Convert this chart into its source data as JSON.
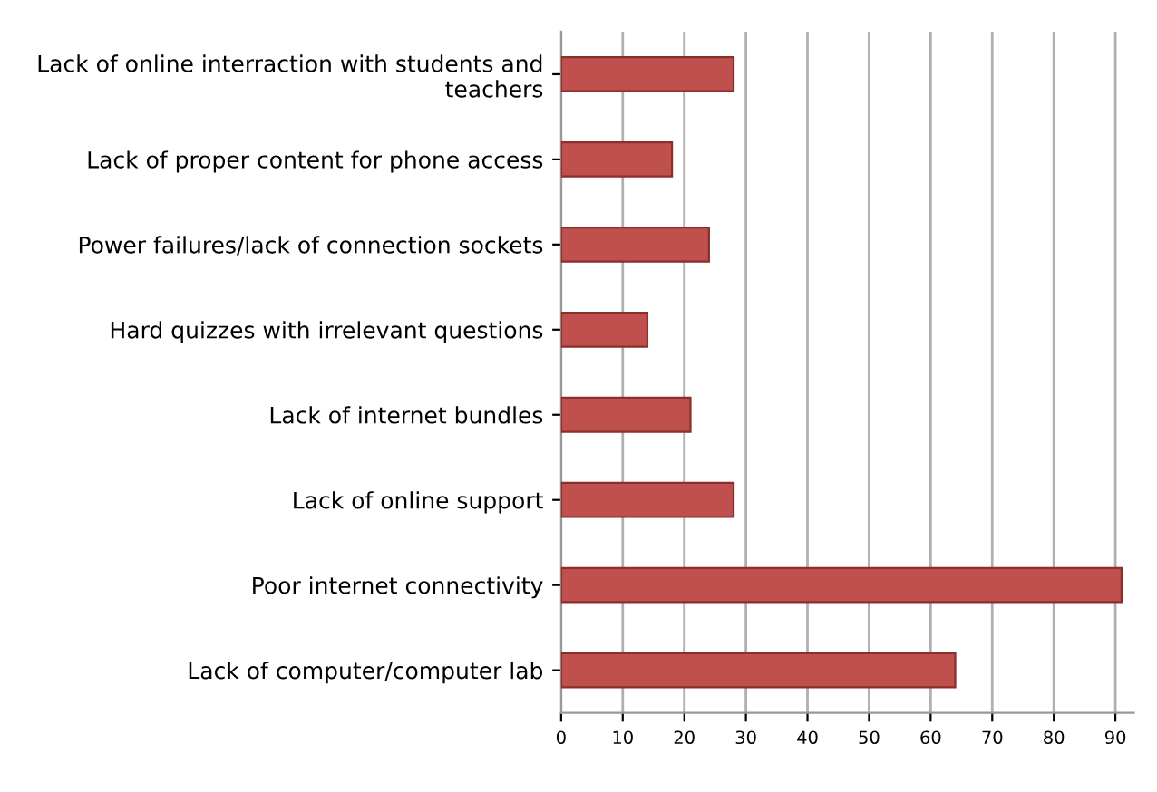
{
  "chart_data": {
    "type": "bar",
    "orientation": "horizontal",
    "categories": [
      "Lack of online interraction with students and teachers",
      "Lack of proper content for phone access",
      "Power failures/lack of connection sockets",
      "Hard quizzes with irrelevant questions",
      "Lack of internet bundles",
      "Lack of online support",
      "Poor internet connectivity",
      "Lack of computer/computer lab"
    ],
    "values": [
      28,
      18,
      24,
      14,
      21,
      28,
      91,
      64
    ],
    "color": "#c0504d",
    "xlim": [
      0,
      93
    ],
    "xticks": [
      0,
      10,
      20,
      30,
      40,
      50,
      60,
      70,
      80,
      90
    ],
    "grid": "x",
    "legend": false
  }
}
